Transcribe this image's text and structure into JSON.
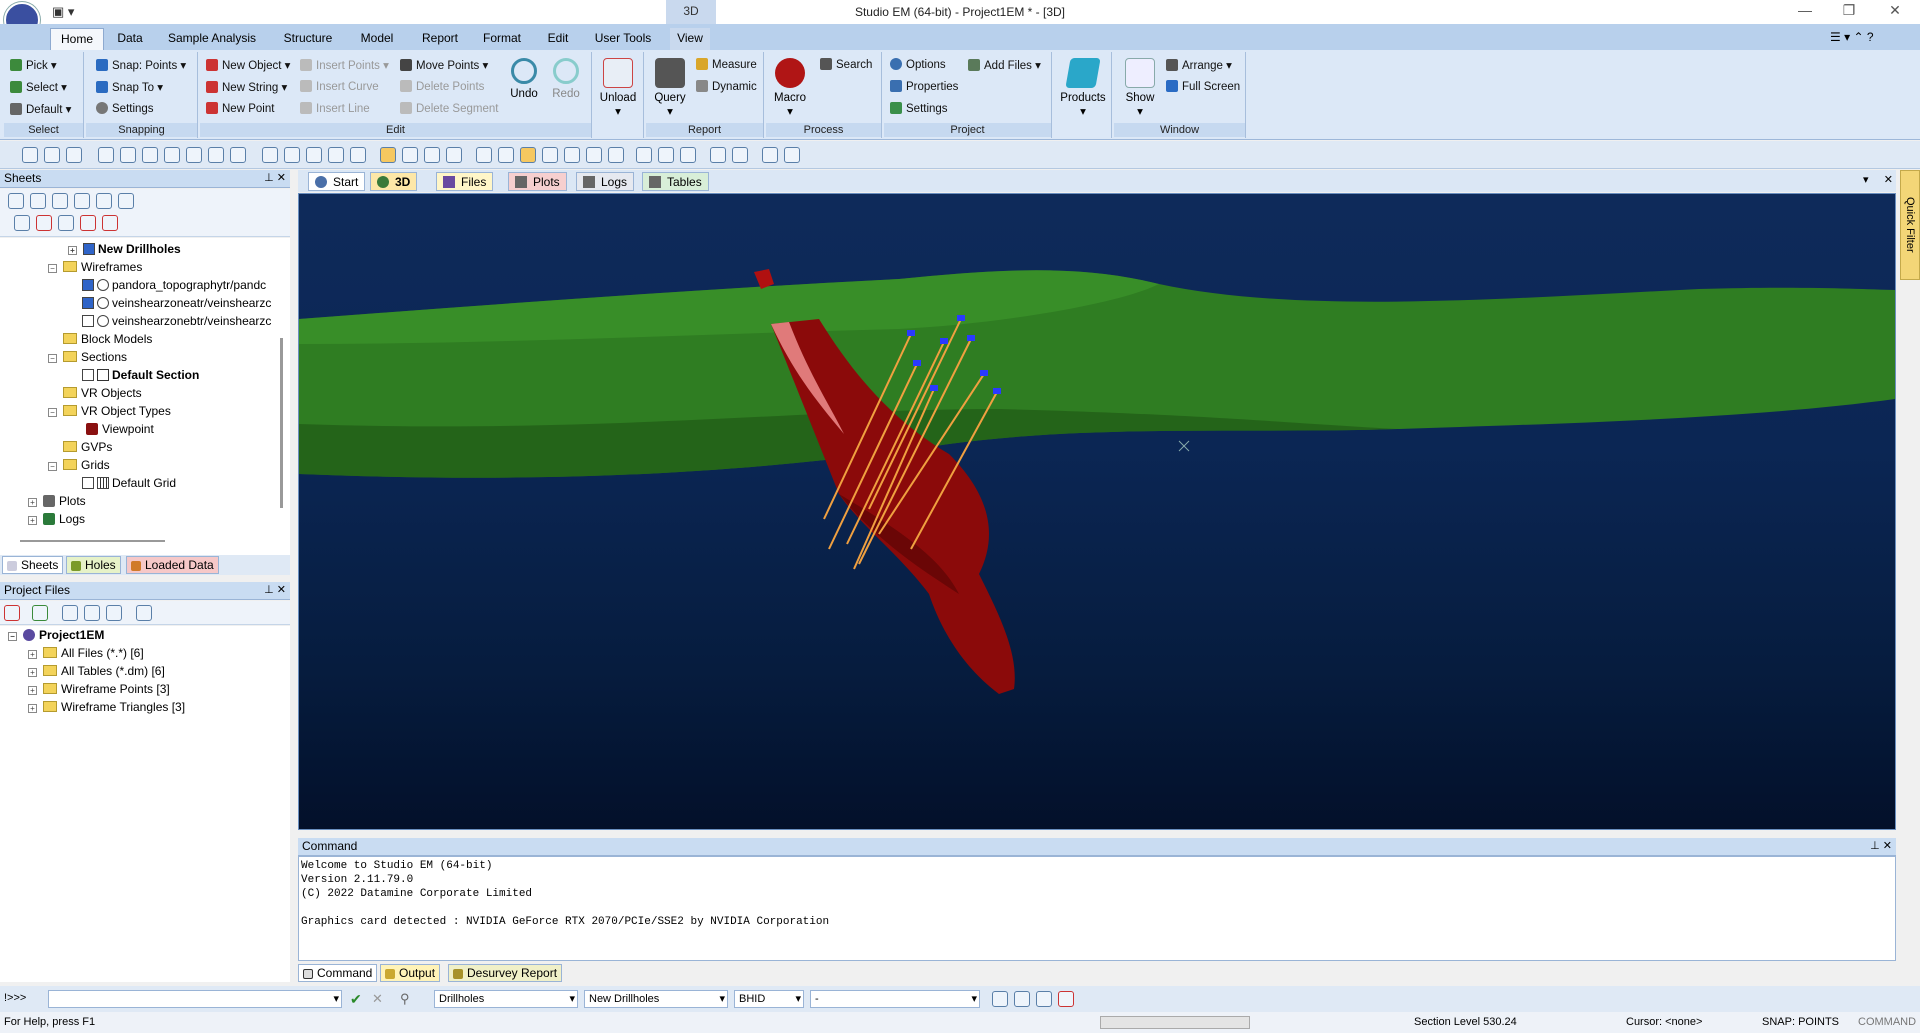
{
  "window": {
    "title": "Studio EM (64-bit) - Project1EM * - [3D]",
    "context_tab": "3D"
  },
  "tabs": [
    "Home",
    "Data",
    "Sample Analysis",
    "Structure",
    "Model",
    "Report",
    "Format",
    "Edit",
    "User Tools",
    "View"
  ],
  "ribbon": {
    "select": {
      "label": "Select",
      "items": [
        "Pick",
        "Select",
        "Default"
      ]
    },
    "snapping": {
      "label": "Snapping",
      "items": [
        "Snap: Points",
        "Snap To",
        "Settings"
      ]
    },
    "edit": {
      "label": "Edit",
      "items": [
        "New Object",
        "New String",
        "New Point",
        "Insert Points",
        "Insert Curve",
        "Insert Line",
        "Move Points",
        "Delete Points",
        "Delete Segment"
      ],
      "undo": "Undo",
      "redo": "Redo"
    },
    "unload": {
      "label": "Unload"
    },
    "report": {
      "label": "Report",
      "query": "Query",
      "measure": "Measure",
      "dynamic": "Dynamic"
    },
    "process": {
      "label": "Process",
      "macro": "Macro",
      "search": "Search"
    },
    "project": {
      "label": "Project",
      "items": [
        "Options",
        "Properties",
        "Settings"
      ],
      "add_files": "Add Files"
    },
    "products": {
      "label": "Products"
    },
    "window_grp": {
      "label": "Window",
      "show": "Show",
      "arrange": "Arrange",
      "full_screen": "Full Screen"
    }
  },
  "sheets": {
    "title": "Sheets",
    "tree": [
      {
        "label": "New Drillholes",
        "bold": true,
        "checked": true
      },
      {
        "label": "Wireframes",
        "folder": true
      },
      {
        "label": "pandora_topographytr/pandc",
        "checked": true
      },
      {
        "label": "veinshearzoneatr/veinshearzc",
        "checked": true
      },
      {
        "label": "veinshearzonebtr/veinshearzc",
        "checked": false
      },
      {
        "label": "Block Models",
        "folder": true
      },
      {
        "label": "Sections",
        "folder": true
      },
      {
        "label": "Default Section",
        "bold": true
      },
      {
        "label": "VR Objects",
        "folder": true
      },
      {
        "label": "VR Object Types",
        "folder": true
      },
      {
        "label": "Viewpoint"
      },
      {
        "label": "GVPs",
        "folder": true
      },
      {
        "label": "Grids",
        "folder": true
      },
      {
        "label": "Default Grid"
      },
      {
        "label": "Plots"
      },
      {
        "label": "Logs"
      }
    ],
    "bottom_tabs": [
      "Sheets",
      "Holes",
      "Loaded Data"
    ]
  },
  "project_files": {
    "title": "Project Files",
    "root": "Project1EM",
    "items": [
      "All Files (*.*) [6]",
      "All Tables (*.dm) [6]",
      "Wireframe Points [3]",
      "Wireframe Triangles [3]"
    ]
  },
  "doc_tabs": [
    "Start",
    "3D",
    "Files",
    "Plots",
    "Logs",
    "Tables"
  ],
  "quick_filter": "Quick Filter",
  "command": {
    "title": "Command",
    "lines": [
      "Welcome to Studio EM (64-bit)",
      "Version 2.11.79.0",
      "(C) 2022 Datamine Corporate Limited",
      "",
      "Graphics card detected : NVIDIA GeForce RTX 2070/PCIe/SSE2 by NVIDIA Corporation"
    ],
    "tabs": [
      "Command",
      "Output",
      "Desurvey Report"
    ]
  },
  "cmdbar": {
    "prompt": "!>>>",
    "dd1": "Drillholes",
    "dd2": "New Drillholes",
    "dd3": "BHID",
    "dd4": "-"
  },
  "status": {
    "help": "For Help, press F1",
    "section": "Section Level 530.24",
    "cursor": "Cursor: <none>",
    "snap": "SNAP: POINTS",
    "mode": "COMMAND"
  },
  "colors": {
    "terrain": "#2f7d22",
    "orebody": "#8b0a0a",
    "drillhole": "#f0a040",
    "sky": "#0b2654"
  }
}
